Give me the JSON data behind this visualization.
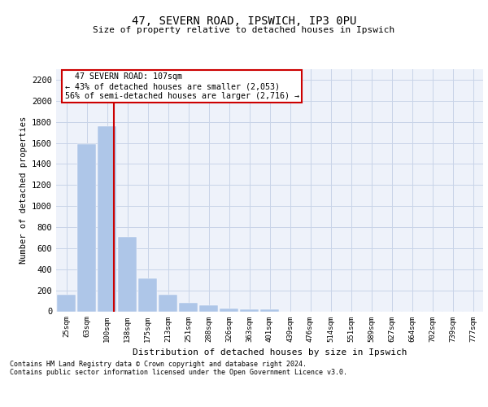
{
  "title1": "47, SEVERN ROAD, IPSWICH, IP3 0PU",
  "title2": "Size of property relative to detached houses in Ipswich",
  "xlabel": "Distribution of detached houses by size in Ipswich",
  "ylabel": "Number of detached properties",
  "categories": [
    "25sqm",
    "63sqm",
    "100sqm",
    "138sqm",
    "175sqm",
    "213sqm",
    "251sqm",
    "288sqm",
    "326sqm",
    "363sqm",
    "401sqm",
    "439sqm",
    "476sqm",
    "514sqm",
    "551sqm",
    "589sqm",
    "627sqm",
    "664sqm",
    "702sqm",
    "739sqm",
    "777sqm"
  ],
  "values": [
    160,
    1590,
    1760,
    710,
    315,
    160,
    85,
    55,
    30,
    22,
    20,
    0,
    0,
    0,
    0,
    0,
    0,
    0,
    0,
    0,
    0
  ],
  "bar_color": "#aec6e8",
  "bar_edge_color": "#aec6e8",
  "grid_color": "#c8d4e8",
  "background_color": "#eef2fa",
  "property_line_x": 2.35,
  "annotation_text": "  47 SEVERN ROAD: 107sqm\n← 43% of detached houses are smaller (2,053)\n56% of semi-detached houses are larger (2,716) →",
  "annotation_box_color": "#ffffff",
  "annotation_box_edge": "#cc0000",
  "property_line_color": "#cc0000",
  "footer1": "Contains HM Land Registry data © Crown copyright and database right 2024.",
  "footer2": "Contains public sector information licensed under the Open Government Licence v3.0.",
  "ylim": [
    0,
    2300
  ],
  "yticks": [
    0,
    200,
    400,
    600,
    800,
    1000,
    1200,
    1400,
    1600,
    1800,
    2000,
    2200
  ]
}
